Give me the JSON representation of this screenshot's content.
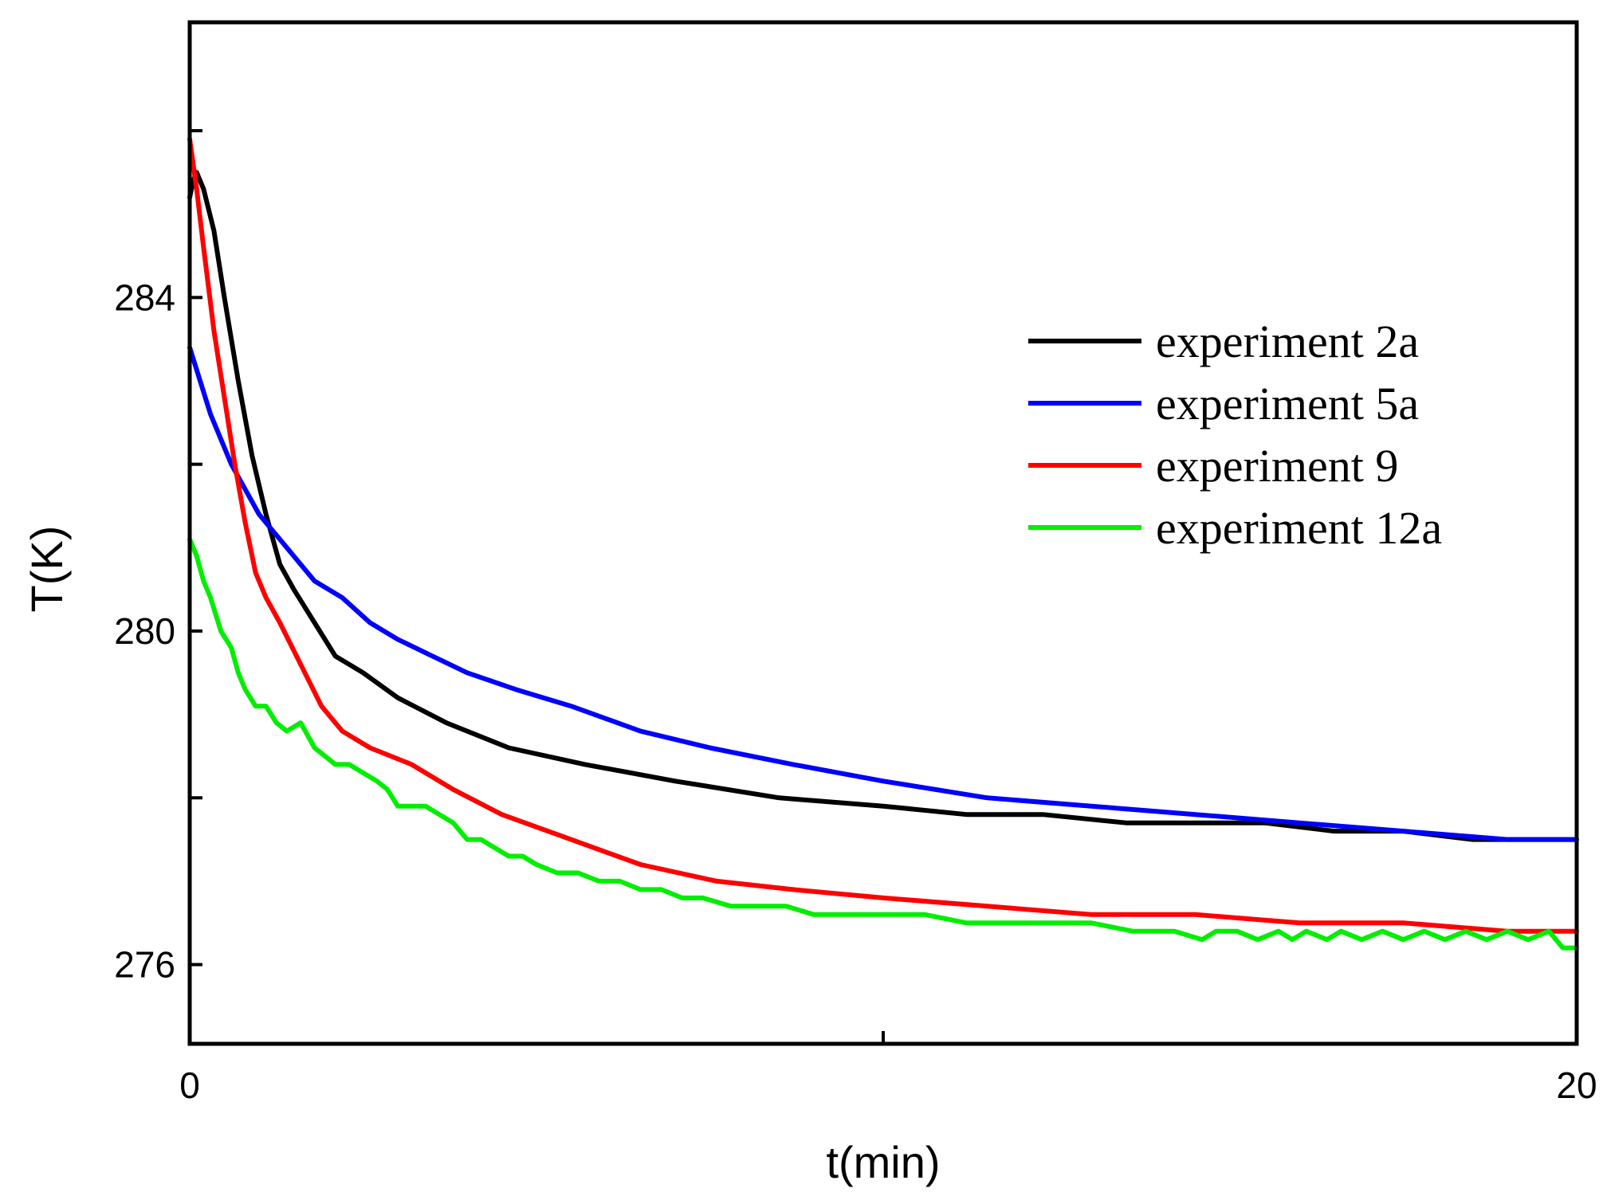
{
  "chart_data": {
    "type": "line",
    "title": "",
    "xlabel": "t(min)",
    "ylabel": "T(K)",
    "xlim": [
      0,
      20
    ],
    "ylim": [
      275.05,
      287.3
    ],
    "grid": false,
    "legend_position": "top-right",
    "x_ticks": [
      0,
      10,
      20
    ],
    "x_tick_labels": [
      "0",
      "",
      "20"
    ],
    "y_ticks": [
      276,
      278,
      280,
      282,
      284,
      286
    ],
    "y_tick_labels": [
      "276",
      "",
      "280",
      "",
      "284",
      ""
    ],
    "series": [
      {
        "name": "experiment 2a",
        "color": "#000000",
        "x": [
          0,
          0.05,
          0.1,
          0.2,
          0.35,
          0.5,
          0.7,
          0.9,
          1.1,
          1.3,
          1.5,
          1.8,
          2.1,
          2.5,
          3.0,
          3.7,
          4.6,
          5.7,
          7.0,
          8.5,
          10.0,
          11.2,
          12.3,
          13.5,
          14.5,
          15.5,
          16.5,
          17.5,
          18.5,
          19.5,
          20.0
        ],
        "values": [
          285.2,
          285.4,
          285.5,
          285.3,
          284.8,
          284.0,
          283.0,
          282.1,
          281.4,
          280.8,
          280.5,
          280.1,
          279.7,
          279.5,
          279.2,
          278.9,
          278.6,
          278.4,
          278.2,
          278.0,
          277.9,
          277.8,
          277.8,
          277.7,
          277.7,
          277.7,
          277.6,
          277.6,
          277.5,
          277.5,
          277.5
        ]
      },
      {
        "name": "experiment 5a",
        "color": "#0000ff",
        "x": [
          0,
          0.3,
          0.6,
          1.0,
          1.4,
          1.8,
          2.2,
          2.6,
          3.0,
          3.5,
          4.0,
          4.7,
          5.5,
          6.5,
          7.5,
          8.7,
          10.0,
          11.5,
          13.0,
          14.5,
          16.0,
          17.5,
          19.0,
          20.0
        ],
        "values": [
          283.4,
          282.6,
          282.0,
          281.4,
          281.0,
          280.6,
          280.4,
          280.1,
          279.9,
          279.7,
          279.5,
          279.3,
          279.1,
          278.8,
          278.6,
          278.4,
          278.2,
          278.0,
          277.9,
          277.8,
          277.7,
          277.6,
          277.5,
          277.5
        ]
      },
      {
        "name": "experiment 9",
        "color": "#ff0000",
        "x": [
          0,
          0.1,
          0.2,
          0.35,
          0.5,
          0.65,
          0.8,
          0.95,
          1.1,
          1.3,
          1.6,
          1.9,
          2.2,
          2.6,
          3.2,
          3.8,
          4.5,
          5.5,
          6.5,
          7.6,
          8.7,
          10.0,
          11.5,
          13.0,
          14.5,
          16.0,
          17.5,
          19.0,
          20.0
        ],
        "values": [
          285.9,
          285.3,
          284.6,
          283.6,
          282.8,
          282.0,
          281.3,
          280.7,
          280.4,
          280.1,
          279.6,
          279.1,
          278.8,
          278.6,
          278.4,
          278.1,
          277.8,
          277.5,
          277.2,
          277.0,
          276.9,
          276.8,
          276.7,
          276.6,
          276.6,
          276.5,
          276.5,
          276.4,
          276.4
        ]
      },
      {
        "name": "experiment 12a",
        "color": "#00ee00",
        "x": [
          0,
          0.1,
          0.2,
          0.3,
          0.45,
          0.6,
          0.7,
          0.8,
          0.95,
          1.1,
          1.25,
          1.4,
          1.6,
          1.8,
          1.95,
          2.1,
          2.3,
          2.5,
          2.7,
          2.85,
          3.0,
          3.2,
          3.4,
          3.6,
          3.8,
          4.0,
          4.2,
          4.4,
          4.6,
          4.8,
          5.0,
          5.3,
          5.6,
          5.9,
          6.2,
          6.5,
          6.8,
          7.1,
          7.4,
          7.8,
          8.2,
          8.6,
          9.0,
          9.5,
          10.0,
          10.6,
          11.2,
          11.8,
          12.4,
          13.0,
          13.6,
          14.2,
          14.6,
          14.8,
          15.1,
          15.4,
          15.7,
          15.9,
          16.1,
          16.4,
          16.6,
          16.9,
          17.2,
          17.5,
          17.8,
          18.1,
          18.4,
          18.7,
          19.0,
          19.3,
          19.6,
          19.8,
          20.0
        ],
        "values": [
          281.1,
          280.9,
          280.6,
          280.4,
          280.0,
          279.8,
          279.5,
          279.3,
          279.1,
          279.1,
          278.9,
          278.8,
          278.9,
          278.6,
          278.5,
          278.4,
          278.4,
          278.3,
          278.2,
          278.1,
          277.9,
          277.9,
          277.9,
          277.8,
          277.7,
          277.5,
          277.5,
          277.4,
          277.3,
          277.3,
          277.2,
          277.1,
          277.1,
          277.0,
          277.0,
          276.9,
          276.9,
          276.8,
          276.8,
          276.7,
          276.7,
          276.7,
          276.6,
          276.6,
          276.6,
          276.6,
          276.5,
          276.5,
          276.5,
          276.5,
          276.4,
          276.4,
          276.3,
          276.4,
          276.4,
          276.3,
          276.4,
          276.3,
          276.4,
          276.3,
          276.4,
          276.3,
          276.4,
          276.3,
          276.4,
          276.3,
          276.4,
          276.3,
          276.4,
          276.3,
          276.4,
          276.2,
          276.2
        ]
      }
    ]
  }
}
